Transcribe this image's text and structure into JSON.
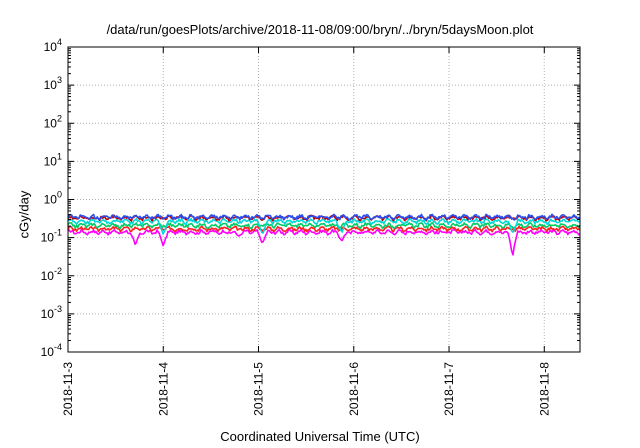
{
  "chart_data": {
    "type": "line",
    "title": "/data/run/goesPlots/archive/2018-11-08/09:00/bryn/../bryn/5daysMoon.plot",
    "xlabel": "Coordinated Universal Time (UTC)",
    "ylabel": "cGy/day",
    "y_scale": "log",
    "ylim": [
      0.0001,
      10000
    ],
    "y_ticks": [
      {
        "value": 0.0001,
        "base": "10",
        "exp": "-4"
      },
      {
        "value": 0.001,
        "base": "10",
        "exp": "-3"
      },
      {
        "value": 0.01,
        "base": "10",
        "exp": "-2"
      },
      {
        "value": 0.1,
        "base": "10",
        "exp": "-1"
      },
      {
        "value": 1,
        "base": "10",
        "exp": "0"
      },
      {
        "value": 10,
        "base": "10",
        "exp": "1"
      },
      {
        "value": 100,
        "base": "10",
        "exp": "2"
      },
      {
        "value": 1000,
        "base": "10",
        "exp": "3"
      },
      {
        "value": 10000,
        "base": "10",
        "exp": "4"
      }
    ],
    "xlim": [
      "2018-11-03T00:00",
      "2018-11-08T09:00"
    ],
    "x_ticks": [
      "2018-11-3",
      "2018-11-4",
      "2018-11-5",
      "2018-11-6",
      "2018-11-7",
      "2018-11-8"
    ],
    "grid": true,
    "series": [
      {
        "color": "#ff00ff",
        "base": 0.14,
        "dips": [
          [
            "2018-11-03T17:00",
            0.06
          ],
          [
            "2018-11-04T00:00",
            0.06
          ],
          [
            "2018-11-04T19:00",
            0.11
          ],
          [
            "2018-11-05T01:00",
            0.07
          ],
          [
            "2018-11-05T21:00",
            0.08
          ],
          [
            "2018-11-07T16:00",
            0.028
          ]
        ]
      },
      {
        "color": "#ff2020",
        "base": 0.17,
        "dips": []
      },
      {
        "color": "#00cc66",
        "base": 0.21,
        "dips": []
      },
      {
        "color": "#00d8d8",
        "base": 0.27,
        "dips": [
          [
            "2018-11-04T00:00",
            0.12
          ],
          [
            "2018-11-05T01:00",
            0.12
          ],
          [
            "2018-11-05T21:00",
            0.13
          ],
          [
            "2018-11-07T16:00",
            0.13
          ]
        ]
      },
      {
        "color": "#c00000",
        "base": 0.33,
        "dips": []
      },
      {
        "color": "#2a4ff0",
        "base": 0.35,
        "dips": []
      }
    ]
  }
}
